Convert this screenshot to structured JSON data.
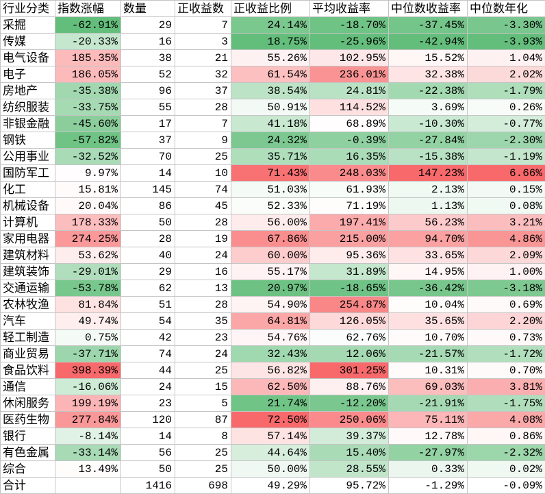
{
  "chart_data": {
    "type": "table",
    "columns": [
      {
        "label": "行业分类",
        "heatmap": false
      },
      {
        "label": "指数涨幅",
        "heatmap": true
      },
      {
        "label": "数量",
        "heatmap": false
      },
      {
        "label": "正收益数",
        "heatmap": false
      },
      {
        "label": "正收益比例",
        "heatmap": true
      },
      {
        "label": "平均收益率",
        "heatmap": true
      },
      {
        "label": "中位数收益率",
        "heatmap": true
      },
      {
        "label": "中位数年化",
        "heatmap": true
      }
    ],
    "rows": [
      [
        "采掘",
        "-62.91%",
        "29",
        "7",
        "24.14%",
        "-18.70%",
        "-37.45%",
        "-3.30%"
      ],
      [
        "传媒",
        "-20.33%",
        "16",
        "3",
        "18.75%",
        "-25.96%",
        "-42.94%",
        "-3.93%"
      ],
      [
        "电气设备",
        "185.35%",
        "38",
        "21",
        "55.26%",
        "102.95%",
        "15.52%",
        "1.04%"
      ],
      [
        "电子",
        "186.05%",
        "52",
        "32",
        "61.54%",
        "236.01%",
        "32.38%",
        "2.02%"
      ],
      [
        "房地产",
        "-35.38%",
        "96",
        "37",
        "38.54%",
        "24.81%",
        "-22.38%",
        "-1.79%"
      ],
      [
        "纺织服装",
        "-33.75%",
        "55",
        "28",
        "50.91%",
        "114.52%",
        "3.69%",
        "0.26%"
      ],
      [
        "非银金融",
        "-45.60%",
        "17",
        "7",
        "41.18%",
        "68.89%",
        "-10.30%",
        "-0.77%"
      ],
      [
        "钢铁",
        "-57.82%",
        "37",
        "9",
        "24.32%",
        "-0.39%",
        "-27.84%",
        "-2.30%"
      ],
      [
        "公用事业",
        "-32.52%",
        "70",
        "25",
        "35.71%",
        "16.35%",
        "-15.38%",
        "-1.19%"
      ],
      [
        "国防军工",
        "9.97%",
        "14",
        "10",
        "71.43%",
        "248.03%",
        "147.23%",
        "6.66%"
      ],
      [
        "化工",
        "15.81%",
        "145",
        "74",
        "51.03%",
        "61.93%",
        "2.13%",
        "0.15%"
      ],
      [
        "机械设备",
        "20.04%",
        "86",
        "45",
        "52.33%",
        "71.19%",
        "1.13%",
        "0.08%"
      ],
      [
        "计算机",
        "178.33%",
        "50",
        "28",
        "56.00%",
        "197.41%",
        "56.23%",
        "3.21%"
      ],
      [
        "家用电器",
        "274.25%",
        "28",
        "19",
        "67.86%",
        "215.00%",
        "94.70%",
        "4.86%"
      ],
      [
        "建筑材料",
        "53.62%",
        "40",
        "24",
        "60.00%",
        "95.36%",
        "33.65%",
        "2.09%"
      ],
      [
        "建筑装饰",
        "-29.01%",
        "29",
        "16",
        "55.17%",
        "31.89%",
        "14.95%",
        "1.00%"
      ],
      [
        "交通运输",
        "-53.78%",
        "62",
        "13",
        "20.97%",
        "-18.65%",
        "-36.42%",
        "-3.18%"
      ],
      [
        "农林牧渔",
        "81.84%",
        "51",
        "28",
        "54.90%",
        "254.87%",
        "10.04%",
        "0.69%"
      ],
      [
        "汽车",
        "49.74%",
        "54",
        "35",
        "64.81%",
        "126.05%",
        "35.65%",
        "2.20%"
      ],
      [
        "轻工制造",
        "0.75%",
        "42",
        "23",
        "54.76%",
        "62.76%",
        "10.70%",
        "0.73%"
      ],
      [
        "商业贸易",
        "-37.71%",
        "74",
        "24",
        "32.43%",
        "12.06%",
        "-21.57%",
        "-1.72%"
      ],
      [
        "食品饮料",
        "398.39%",
        "44",
        "25",
        "56.82%",
        "301.25%",
        "10.31%",
        "0.70%"
      ],
      [
        "通信",
        "-16.06%",
        "24",
        "15",
        "62.50%",
        "88.76%",
        "69.03%",
        "3.81%"
      ],
      [
        "休闲服务",
        "199.19%",
        "23",
        "5",
        "21.74%",
        "-12.20%",
        "-21.91%",
        "-1.75%"
      ],
      [
        "医药生物",
        "277.84%",
        "120",
        "87",
        "72.50%",
        "250.06%",
        "75.11%",
        "4.08%"
      ],
      [
        "银行",
        "-8.14%",
        "14",
        "8",
        "57.14%",
        "39.37%",
        "12.78%",
        "0.86%"
      ],
      [
        "有色金属",
        "-33.14%",
        "56",
        "25",
        "44.64%",
        "15.40%",
        "-27.97%",
        "-2.32%"
      ],
      [
        "综合",
        "13.49%",
        "50",
        "25",
        "50.00%",
        "28.55%",
        "0.33%",
        "0.02%"
      ]
    ],
    "total": [
      "合计",
      "",
      "1416",
      "698",
      "49.29%",
      "95.72%",
      "-1.29%",
      "-0.09%"
    ],
    "color_scale": {
      "low": "#63BE7B",
      "mid": "#FFFFFF",
      "high": "#F8696B"
    }
  }
}
